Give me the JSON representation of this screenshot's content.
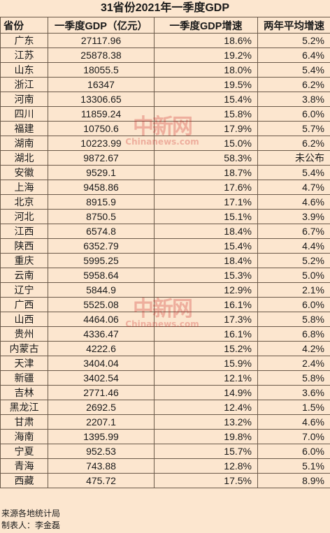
{
  "title": "31省份2021年一季度GDP",
  "headers": {
    "province": "省份",
    "gdp": "一季度GDP（亿元）",
    "growth": "一季度GDP增速",
    "avg": "两年平均增速"
  },
  "rows": [
    [
      "广东",
      "27117.96",
      "18.6%",
      "5.2%"
    ],
    [
      "江苏",
      "25878.38",
      "19.2%",
      "6.4%"
    ],
    [
      "山东",
      "18055.5",
      "18.0%",
      "5.4%"
    ],
    [
      "浙江",
      "16347",
      "19.5%",
      "6.2%"
    ],
    [
      "河南",
      "13306.65",
      "15.4%",
      "3.8%"
    ],
    [
      "四川",
      "11859.24",
      "15.8%",
      "6.0%"
    ],
    [
      "福建",
      "10750.6",
      "17.9%",
      "5.7%"
    ],
    [
      "湖南",
      "10223.99",
      "15.0%",
      "6.2%"
    ],
    [
      "湖北",
      "9872.67",
      "58.3%",
      "未公布"
    ],
    [
      "安徽",
      "9529.1",
      "18.7%",
      "5.4%"
    ],
    [
      "上海",
      "9458.86",
      "17.6%",
      "4.7%"
    ],
    [
      "北京",
      "8915.9",
      "17.1%",
      "4.6%"
    ],
    [
      "河北",
      "8750.5",
      "15.1%",
      "3.9%"
    ],
    [
      "江西",
      "6574.8",
      "18.4%",
      "6.7%"
    ],
    [
      "陕西",
      "6352.79",
      "15.4%",
      "4.4%"
    ],
    [
      "重庆",
      "5995.25",
      "18.4%",
      "5.2%"
    ],
    [
      "云南",
      "5958.64",
      "15.3%",
      "5.0%"
    ],
    [
      "辽宁",
      "5844.9",
      "12.9%",
      "2.1%"
    ],
    [
      "广西",
      "5525.08",
      "16.1%",
      "6.0%"
    ],
    [
      "山西",
      "4464.06",
      "17.3%",
      "5.8%"
    ],
    [
      "贵州",
      "4336.47",
      "16.1%",
      "6.8%"
    ],
    [
      "内蒙古",
      "4222.6",
      "15.2%",
      "4.2%"
    ],
    [
      "天津",
      "3404.04",
      "15.9%",
      "2.4%"
    ],
    [
      "新疆",
      "3402.54",
      "12.1%",
      "5.8%"
    ],
    [
      "吉林",
      "2771.46",
      "14.9%",
      "3.6%"
    ],
    [
      "黑龙江",
      "2692.5",
      "12.4%",
      "1.5%"
    ],
    [
      "甘肃",
      "2207.1",
      "13.2%",
      "4.6%"
    ],
    [
      "海南",
      "1395.99",
      "19.8%",
      "7.0%"
    ],
    [
      "宁夏",
      "952.53",
      "15.7%",
      "6.0%"
    ],
    [
      "青海",
      "743.88",
      "12.8%",
      "5.1%"
    ],
    [
      "西藏",
      "475.72",
      "17.5%",
      "8.9%"
    ]
  ],
  "footer": {
    "source": "来源各地统计局",
    "author": "制表人：李金磊"
  },
  "watermark": {
    "cn": "中新网",
    "en": "Chinanews.com"
  }
}
